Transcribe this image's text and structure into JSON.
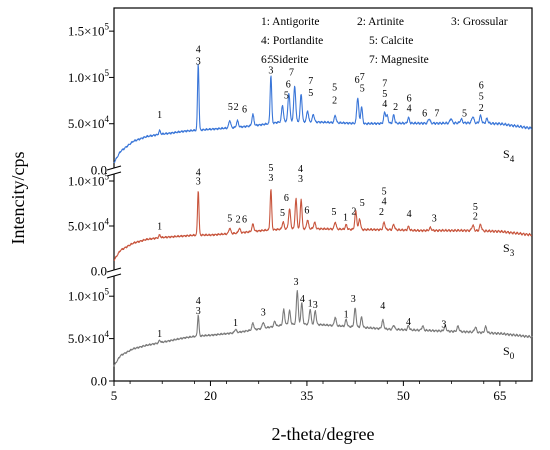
{
  "chart_data": {
    "type": "line",
    "xlabel": "2-theta/degree",
    "ylabel": "Intencity/cps",
    "xlim": [
      5,
      70
    ],
    "x_ticks": [
      "5",
      "20",
      "35",
      "50",
      "65"
    ],
    "x_tick_values": [
      5,
      20,
      35,
      50,
      65
    ],
    "grid": false,
    "legend": {
      "placement": "top-right",
      "entries": [
        "1: Antigorite",
        "2: Artinite",
        "3: Grossular",
        "4: Portlandite",
        "5: Calcite",
        "6: Siderite",
        "7: Magnesite"
      ]
    },
    "panels": [
      {
        "name": "S4",
        "label_main": "S",
        "label_sub": "4",
        "color": "#3a76d8",
        "ylim": [
          0,
          175000
        ],
        "y_ticks": [
          {
            "value": 0,
            "mantissa": "0.0",
            "exp": ""
          },
          {
            "value": 50000,
            "mantissa": "5.0×10",
            "exp": "4"
          },
          {
            "value": 100000,
            "mantissa": "1.0×10",
            "exp": "5"
          },
          {
            "value": 150000,
            "mantissa": "1.5×10",
            "exp": "5"
          }
        ],
        "baseline": [
          [
            5,
            8000
          ],
          [
            6,
            20000
          ],
          [
            8,
            31000
          ],
          [
            10,
            36000
          ],
          [
            12,
            38500
          ],
          [
            14,
            40000
          ],
          [
            16,
            42000
          ],
          [
            18,
            43000
          ],
          [
            20,
            44000
          ],
          [
            24,
            46000
          ],
          [
            28,
            49000
          ],
          [
            32,
            53000
          ],
          [
            36,
            52000
          ],
          [
            40,
            51000
          ],
          [
            44,
            50000
          ],
          [
            48,
            50500
          ],
          [
            52,
            50500
          ],
          [
            56,
            50500
          ],
          [
            60,
            51000
          ],
          [
            65,
            50000
          ],
          [
            70,
            45000
          ]
        ],
        "peaks": [
          {
            "x": 12.1,
            "h": 4000,
            "w": 0.12
          },
          {
            "x": 18.1,
            "h": 72000,
            "w": 0.11
          },
          {
            "x": 23.0,
            "h": 8000,
            "w": 0.15
          },
          {
            "x": 24.2,
            "h": 7000,
            "w": 0.15
          },
          {
            "x": 26.6,
            "h": 12000,
            "w": 0.15
          },
          {
            "x": 29.4,
            "h": 52000,
            "w": 0.12
          },
          {
            "x": 31.2,
            "h": 18000,
            "w": 0.14
          },
          {
            "x": 32.2,
            "h": 30000,
            "w": 0.15
          },
          {
            "x": 33.1,
            "h": 38000,
            "w": 0.15
          },
          {
            "x": 34.1,
            "h": 30000,
            "w": 0.14
          },
          {
            "x": 35.1,
            "h": 12000,
            "w": 0.14
          },
          {
            "x": 36.0,
            "h": 8000,
            "w": 0.15
          },
          {
            "x": 39.4,
            "h": 8000,
            "w": 0.14
          },
          {
            "x": 42.9,
            "h": 28000,
            "w": 0.15
          },
          {
            "x": 43.5,
            "h": 18000,
            "w": 0.14
          },
          {
            "x": 47.1,
            "h": 12000,
            "w": 0.15
          },
          {
            "x": 47.5,
            "h": 8000,
            "w": 0.14
          },
          {
            "x": 48.5,
            "h": 9000,
            "w": 0.14
          },
          {
            "x": 50.8,
            "h": 6000,
            "w": 0.14
          },
          {
            "x": 54.0,
            "h": 5000,
            "w": 0.15
          },
          {
            "x": 57.4,
            "h": 5000,
            "w": 0.15
          },
          {
            "x": 59.0,
            "h": 4000,
            "w": 0.16
          },
          {
            "x": 60.8,
            "h": 7000,
            "w": 0.16
          },
          {
            "x": 62.0,
            "h": 8000,
            "w": 0.16
          },
          {
            "x": 63.0,
            "h": 5000,
            "w": 0.16
          }
        ],
        "peak_labels": [
          {
            "x": 12.1,
            "y": 56000,
            "text": "1"
          },
          {
            "x": 18.1,
            "y": 127000,
            "text": "4"
          },
          {
            "x": 18.1,
            "y": 114000,
            "text": "3"
          },
          {
            "x": 23.1,
            "y": 65000,
            "text": "5"
          },
          {
            "x": 24.0,
            "y": 65000,
            "text": "2"
          },
          {
            "x": 25.3,
            "y": 62000,
            "text": "6"
          },
          {
            "x": 29.4,
            "y": 116000,
            "text": "5"
          },
          {
            "x": 29.4,
            "y": 104000,
            "text": "3"
          },
          {
            "x": 32.6,
            "y": 102000,
            "text": "7"
          },
          {
            "x": 32.1,
            "y": 89000,
            "text": "6"
          },
          {
            "x": 31.8,
            "y": 77000,
            "text": "5"
          },
          {
            "x": 35.6,
            "y": 93000,
            "text": "7"
          },
          {
            "x": 35.6,
            "y": 80000,
            "text": "5"
          },
          {
            "x": 39.3,
            "y": 86000,
            "text": "5"
          },
          {
            "x": 39.3,
            "y": 72000,
            "text": "2"
          },
          {
            "x": 42.8,
            "y": 94000,
            "text": "6"
          },
          {
            "x": 43.6,
            "y": 97000,
            "text": "7"
          },
          {
            "x": 43.6,
            "y": 85000,
            "text": "5"
          },
          {
            "x": 47.1,
            "y": 90000,
            "text": "7"
          },
          {
            "x": 47.1,
            "y": 79000,
            "text": "5"
          },
          {
            "x": 47.1,
            "y": 68000,
            "text": "4"
          },
          {
            "x": 48.8,
            "y": 65000,
            "text": "2"
          },
          {
            "x": 50.9,
            "y": 74000,
            "text": "6"
          },
          {
            "x": 50.9,
            "y": 63000,
            "text": "4"
          },
          {
            "x": 53.3,
            "y": 58000,
            "text": "6"
          },
          {
            "x": 55.2,
            "y": 58000,
            "text": "7"
          },
          {
            "x": 59.5,
            "y": 58000,
            "text": "5"
          },
          {
            "x": 62.1,
            "y": 88000,
            "text": "6"
          },
          {
            "x": 62.1,
            "y": 76000,
            "text": "5"
          },
          {
            "x": 62.1,
            "y": 64000,
            "text": "2"
          }
        ]
      },
      {
        "name": "S3",
        "label_main": "S",
        "label_sub": "3",
        "color": "#c8553d",
        "ylim": [
          0,
          110000
        ],
        "y_ticks": [
          {
            "value": 0,
            "mantissa": "0.0",
            "exp": ""
          },
          {
            "value": 50000,
            "mantissa": "5.0×10",
            "exp": "4"
          },
          {
            "value": 100000,
            "mantissa": "1.0×10",
            "exp": "5"
          }
        ],
        "baseline": [
          [
            5,
            12000
          ],
          [
            6,
            23000
          ],
          [
            8,
            31000
          ],
          [
            10,
            35000
          ],
          [
            12,
            37000
          ],
          [
            14,
            38000
          ],
          [
            16,
            39000
          ],
          [
            18,
            40000
          ],
          [
            20,
            40000
          ],
          [
            24,
            42000
          ],
          [
            28,
            45000
          ],
          [
            32,
            47000
          ],
          [
            36,
            47000
          ],
          [
            40,
            46500
          ],
          [
            44,
            46000
          ],
          [
            48,
            46000
          ],
          [
            52,
            45000
          ],
          [
            56,
            45000
          ],
          [
            60,
            45000
          ],
          [
            65,
            44000
          ],
          [
            70,
            40000
          ]
        ],
        "peaks": [
          {
            "x": 12.1,
            "h": 3000,
            "w": 0.12
          },
          {
            "x": 18.1,
            "h": 50000,
            "w": 0.11
          },
          {
            "x": 23.0,
            "h": 6000,
            "w": 0.15
          },
          {
            "x": 24.5,
            "h": 5000,
            "w": 0.15
          },
          {
            "x": 26.6,
            "h": 8000,
            "w": 0.15
          },
          {
            "x": 29.4,
            "h": 45000,
            "w": 0.12
          },
          {
            "x": 31.3,
            "h": 8000,
            "w": 0.14
          },
          {
            "x": 32.3,
            "h": 22000,
            "w": 0.15
          },
          {
            "x": 33.3,
            "h": 33000,
            "w": 0.14
          },
          {
            "x": 34.1,
            "h": 33000,
            "w": 0.13
          },
          {
            "x": 35.1,
            "h": 10000,
            "w": 0.14
          },
          {
            "x": 36.2,
            "h": 7000,
            "w": 0.15
          },
          {
            "x": 39.4,
            "h": 8000,
            "w": 0.14
          },
          {
            "x": 41.1,
            "h": 5000,
            "w": 0.14
          },
          {
            "x": 42.6,
            "h": 20000,
            "w": 0.15
          },
          {
            "x": 43.2,
            "h": 12000,
            "w": 0.14
          },
          {
            "x": 47.0,
            "h": 8000,
            "w": 0.15
          },
          {
            "x": 48.5,
            "h": 6000,
            "w": 0.14
          },
          {
            "x": 50.8,
            "h": 4000,
            "w": 0.14
          },
          {
            "x": 54.2,
            "h": 3000,
            "w": 0.15
          },
          {
            "x": 60.8,
            "h": 6000,
            "w": 0.16
          },
          {
            "x": 62.0,
            "h": 7000,
            "w": 0.16
          }
        ],
        "peak_labels": [
          {
            "x": 12.1,
            "y": 46000,
            "text": "1"
          },
          {
            "x": 18.1,
            "y": 106000,
            "text": "4"
          },
          {
            "x": 18.1,
            "y": 96000,
            "text": "3"
          },
          {
            "x": 23.0,
            "y": 55000,
            "text": "5"
          },
          {
            "x": 24.3,
            "y": 54000,
            "text": "2"
          },
          {
            "x": 25.3,
            "y": 54000,
            "text": "6"
          },
          {
            "x": 29.4,
            "y": 111000,
            "text": "5"
          },
          {
            "x": 29.4,
            "y": 100000,
            "text": "3"
          },
          {
            "x": 31.8,
            "y": 78000,
            "text": "6"
          },
          {
            "x": 31.2,
            "y": 61000,
            "text": "5"
          },
          {
            "x": 34.0,
            "y": 110000,
            "text": "4"
          },
          {
            "x": 34.0,
            "y": 99000,
            "text": "3"
          },
          {
            "x": 35.0,
            "y": 64000,
            "text": "6"
          },
          {
            "x": 39.2,
            "y": 62000,
            "text": "5"
          },
          {
            "x": 41.0,
            "y": 56000,
            "text": "1"
          },
          {
            "x": 43.6,
            "y": 72000,
            "text": "5"
          },
          {
            "x": 42.3,
            "y": 63000,
            "text": "2"
          },
          {
            "x": 47.0,
            "y": 85000,
            "text": "5"
          },
          {
            "x": 47.0,
            "y": 74000,
            "text": "4"
          },
          {
            "x": 46.6,
            "y": 62000,
            "text": "2"
          },
          {
            "x": 50.9,
            "y": 60000,
            "text": "4"
          },
          {
            "x": 54.8,
            "y": 55000,
            "text": "3"
          },
          {
            "x": 61.2,
            "y": 68000,
            "text": "5"
          },
          {
            "x": 61.2,
            "y": 57000,
            "text": "2"
          }
        ]
      },
      {
        "name": "S0",
        "label_main": "S",
        "label_sub": "0",
        "color": "#7a7a7a",
        "ylim": [
          0,
          125000
        ],
        "y_ticks": [
          {
            "value": 0,
            "mantissa": "0.0",
            "exp": ""
          },
          {
            "value": 50000,
            "mantissa": "5.0×10",
            "exp": "4"
          },
          {
            "value": 100000,
            "mantissa": "1.0×10",
            "exp": "5"
          }
        ],
        "baseline": [
          [
            5,
            18000
          ],
          [
            6,
            30000
          ],
          [
            8,
            38000
          ],
          [
            10,
            42000
          ],
          [
            12,
            45000
          ],
          [
            14,
            48000
          ],
          [
            16,
            51000
          ],
          [
            18,
            53000
          ],
          [
            20,
            54000
          ],
          [
            24,
            57000
          ],
          [
            28,
            62000
          ],
          [
            32,
            67000
          ],
          [
            36,
            67000
          ],
          [
            40,
            65000
          ],
          [
            44,
            63000
          ],
          [
            48,
            61000
          ],
          [
            52,
            60000
          ],
          [
            56,
            59000
          ],
          [
            60,
            58000
          ],
          [
            65,
            56000
          ],
          [
            70,
            52000
          ]
        ],
        "peaks": [
          {
            "x": 12.1,
            "h": 3000,
            "w": 0.12
          },
          {
            "x": 18.1,
            "h": 25000,
            "w": 0.11
          },
          {
            "x": 23.9,
            "h": 4000,
            "w": 0.15
          },
          {
            "x": 26.6,
            "h": 8000,
            "w": 0.15
          },
          {
            "x": 28.2,
            "h": 7000,
            "w": 0.15
          },
          {
            "x": 30.0,
            "h": 6000,
            "w": 0.14
          },
          {
            "x": 31.4,
            "h": 18000,
            "w": 0.14
          },
          {
            "x": 32.3,
            "h": 16000,
            "w": 0.14
          },
          {
            "x": 33.5,
            "h": 40000,
            "w": 0.14
          },
          {
            "x": 34.2,
            "h": 25000,
            "w": 0.14
          },
          {
            "x": 35.5,
            "h": 18000,
            "w": 0.14
          },
          {
            "x": 36.3,
            "h": 16000,
            "w": 0.14
          },
          {
            "x": 39.4,
            "h": 10000,
            "w": 0.14
          },
          {
            "x": 41.1,
            "h": 8000,
            "w": 0.14
          },
          {
            "x": 42.5,
            "h": 22000,
            "w": 0.15
          },
          {
            "x": 43.5,
            "h": 12000,
            "w": 0.14
          },
          {
            "x": 46.8,
            "h": 10000,
            "w": 0.15
          },
          {
            "x": 48.5,
            "h": 5000,
            "w": 0.14
          },
          {
            "x": 50.8,
            "h": 5000,
            "w": 0.14
          },
          {
            "x": 53.0,
            "h": 5000,
            "w": 0.15
          },
          {
            "x": 56.5,
            "h": 6000,
            "w": 0.16
          },
          {
            "x": 58.5,
            "h": 6000,
            "w": 0.16
          },
          {
            "x": 61.2,
            "h": 6000,
            "w": 0.16
          },
          {
            "x": 62.8,
            "h": 7000,
            "w": 0.16
          }
        ],
        "peak_labels": [
          {
            "x": 12.1,
            "y": 52000,
            "text": "1"
          },
          {
            "x": 18.1,
            "y": 91000,
            "text": "4"
          },
          {
            "x": 18.1,
            "y": 79000,
            "text": "3"
          },
          {
            "x": 23.9,
            "y": 65000,
            "text": "1"
          },
          {
            "x": 28.2,
            "y": 77000,
            "text": "3"
          },
          {
            "x": 33.3,
            "y": 113000,
            "text": "3"
          },
          {
            "x": 34.3,
            "y": 93000,
            "text": "4"
          },
          {
            "x": 35.5,
            "y": 88000,
            "text": "1"
          },
          {
            "x": 36.3,
            "y": 86000,
            "text": "3"
          },
          {
            "x": 41.1,
            "y": 75000,
            "text": "1"
          },
          {
            "x": 42.2,
            "y": 93000,
            "text": "3"
          },
          {
            "x": 46.8,
            "y": 85000,
            "text": "4"
          },
          {
            "x": 50.8,
            "y": 66000,
            "text": "4"
          },
          {
            "x": 56.3,
            "y": 63000,
            "text": "3"
          }
        ]
      }
    ]
  }
}
